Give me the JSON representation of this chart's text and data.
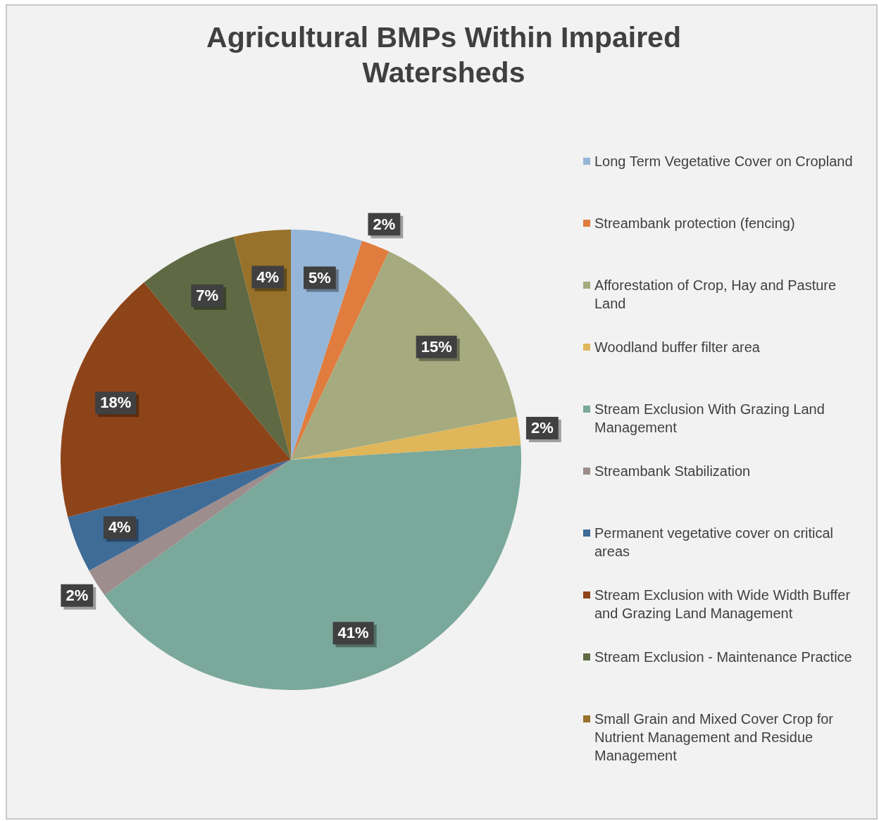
{
  "chart_data": {
    "type": "pie",
    "title": "Agricultural BMPs Within Impaired Watersheds",
    "categories": [
      "Long Term Vegetative Cover on Cropland",
      "Streambank protection (fencing)",
      "Afforestation of Crop, Hay and Pasture Land",
      "Woodland buffer filter area",
      "Stream Exclusion With Grazing Land Management",
      "Streambank Stabilization",
      "Permanent vegetative cover on critical areas",
      "Stream Exclusion with Wide Width Buffer and Grazing Land Management",
      "Stream Exclusion - Maintenance Practice",
      "Small Grain  and Mixed Cover Crop for Nutrient Management and Residue Management"
    ],
    "values": [
      5,
      2,
      15,
      2,
      41,
      2,
      4,
      18,
      7,
      4
    ],
    "value_labels": [
      "5%",
      "2%",
      "15%",
      "2%",
      "41%",
      "2%",
      "4%",
      "18%",
      "7%",
      "4%"
    ],
    "colors": [
      "#95b6d8",
      "#e07c3e",
      "#a5ab7e",
      "#dfb65a",
      "#7aa89b",
      "#9d8d8c",
      "#3f6b97",
      "#8e4419",
      "#5f6943",
      "#98712a"
    ],
    "legend": "right"
  }
}
